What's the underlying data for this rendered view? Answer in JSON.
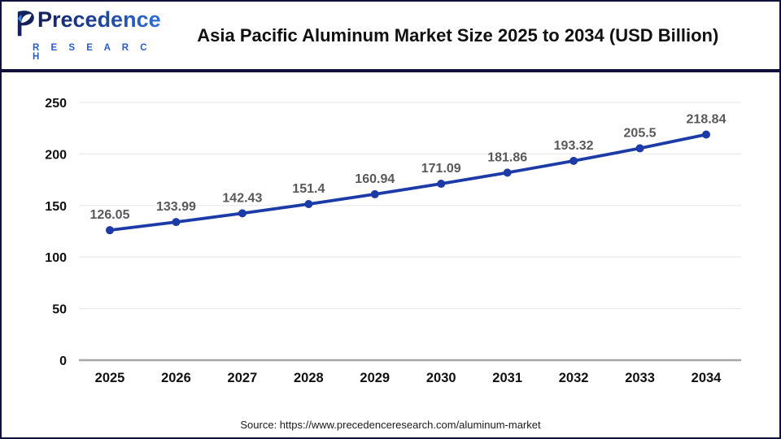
{
  "header": {
    "logo": {
      "wordmark": "Precedence",
      "subtext": "R E S E A R C H"
    },
    "title": "Asia Pacific Aluminum Market Size 2025 to 2034 (USD Billion)"
  },
  "chart_data": {
    "type": "line",
    "title": "Asia Pacific Aluminum Market Size 2025 to 2034 (USD Billion)",
    "categories": [
      "2025",
      "2026",
      "2027",
      "2028",
      "2029",
      "2030",
      "2031",
      "2032",
      "2033",
      "2034"
    ],
    "values": [
      126.05,
      133.99,
      142.43,
      151.4,
      160.94,
      171.09,
      181.86,
      193.32,
      205.5,
      218.84
    ],
    "data_labels": [
      "126.05",
      "133.99",
      "142.43",
      "151.4",
      "160.94",
      "171.09",
      "181.86",
      "193.32",
      "205.5",
      "218.84"
    ],
    "xlabel": "",
    "ylabel": "",
    "ylim": [
      0,
      250
    ],
    "yticks": [
      0,
      50,
      100,
      150,
      200,
      250
    ],
    "grid": true,
    "legend": "none"
  },
  "colors": {
    "line": "#1c3ba6",
    "marker": "#1c3ba6",
    "data_label": "#595959",
    "tick_label": "#111111",
    "gridline": "#ececec",
    "axis_line": "#a6a6a6",
    "header_divider": "#10103a",
    "logo_navy": "#14215c",
    "logo_blue": "#4a86e0",
    "research_blue": "#2a5cc8"
  },
  "footer": {
    "source": "Source: https://www.precedenceresearch.com/aluminum-market"
  }
}
